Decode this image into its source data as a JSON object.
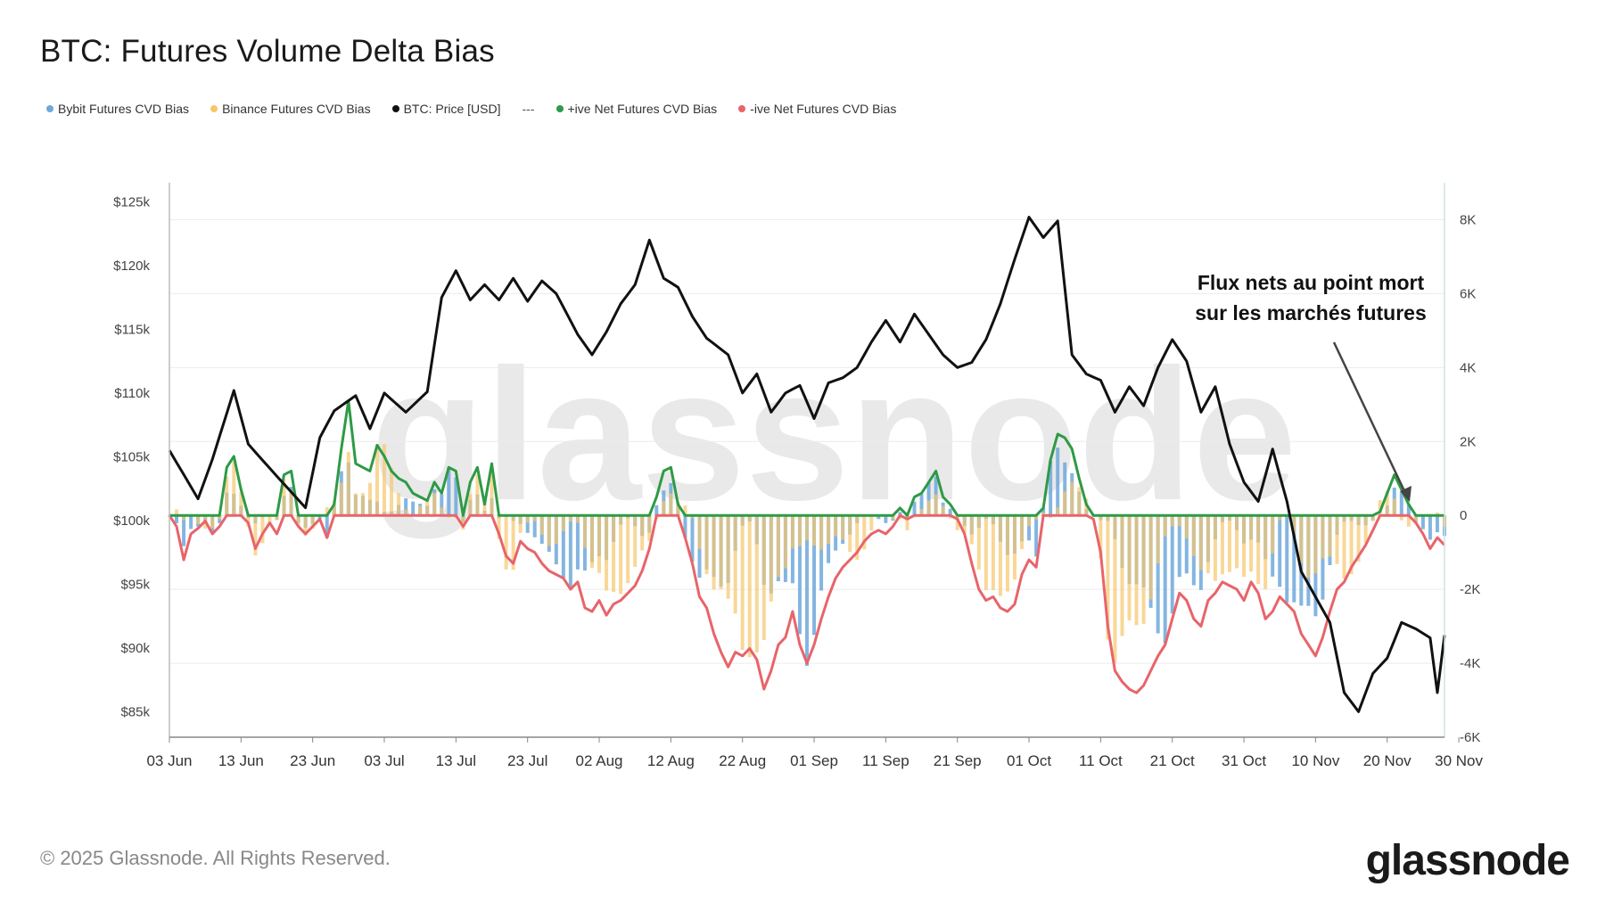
{
  "title": "BTC: Futures Volume Delta Bias",
  "legend": [
    {
      "label": "Bybit Futures CVD Bias",
      "color": "#6fa8dc"
    },
    {
      "label": "Binance Futures CVD Bias",
      "color": "#f6c66b"
    },
    {
      "label": "BTC: Price [USD]",
      "color": "#111111"
    },
    {
      "label": "+ive Net Futures CVD Bias",
      "color": "#2e9a46"
    },
    {
      "label": "-ive Net Futures CVD Bias",
      "color": "#e8646a"
    }
  ],
  "legend_dash": "---",
  "footer": "© 2025 Glassnode. All Rights Reserved.",
  "brand": "glassnode",
  "watermark": "glassnode",
  "annotation": {
    "line1": "Flux nets au point mort",
    "line2": "sur les marchés futures"
  },
  "chart_data": {
    "type": "bar+line",
    "title": "BTC: Futures Volume Delta Bias",
    "x_ticks": [
      "03 Jun",
      "13 Jun",
      "23 Jun",
      "03 Jul",
      "13 Jul",
      "23 Jul",
      "02 Aug",
      "12 Aug",
      "22 Aug",
      "01 Sep",
      "11 Sep",
      "21 Sep",
      "01 Oct",
      "11 Oct",
      "21 Oct",
      "31 Oct",
      "10 Nov",
      "20 Nov",
      "30 Nov"
    ],
    "y_left_ticks": [
      "$125k",
      "$120k",
      "$115k",
      "$110k",
      "$105k",
      "$100k",
      "$95k",
      "$90k",
      "$85k"
    ],
    "y_left_range": [
      83000,
      126500
    ],
    "y_right_ticks": [
      "8K",
      "6K",
      "4K",
      "2K",
      "0",
      "-2K",
      "-4K",
      "-6K"
    ],
    "y_right_range": [
      -6000,
      9000
    ],
    "price_series": {
      "name": "BTC: Price [USD]",
      "anchors": [
        [
          0,
          105500
        ],
        [
          4,
          101700
        ],
        [
          6,
          104800
        ],
        [
          9,
          110200
        ],
        [
          11,
          106000
        ],
        [
          14,
          104100
        ],
        [
          19,
          101000
        ],
        [
          21,
          106500
        ],
        [
          23,
          108600
        ],
        [
          26,
          109800
        ],
        [
          28,
          107200
        ],
        [
          30,
          110000
        ],
        [
          33,
          108500
        ],
        [
          36,
          110100
        ],
        [
          38,
          117500
        ],
        [
          40,
          119600
        ],
        [
          42,
          117300
        ],
        [
          44,
          118500
        ],
        [
          46,
          117300
        ],
        [
          48,
          119000
        ],
        [
          50,
          117200
        ],
        [
          52,
          118800
        ],
        [
          54,
          117800
        ],
        [
          57,
          114600
        ],
        [
          59,
          113000
        ],
        [
          61,
          114800
        ],
        [
          63,
          117000
        ],
        [
          65,
          118500
        ],
        [
          67,
          122000
        ],
        [
          69,
          119000
        ],
        [
          71,
          118300
        ],
        [
          73,
          116000
        ],
        [
          75,
          114300
        ],
        [
          78,
          113000
        ],
        [
          80,
          110000
        ],
        [
          82,
          111500
        ],
        [
          84,
          108500
        ],
        [
          86,
          110000
        ],
        [
          88,
          110600
        ],
        [
          90,
          108000
        ],
        [
          92,
          110800
        ],
        [
          94,
          111200
        ],
        [
          96,
          112000
        ],
        [
          98,
          114000
        ],
        [
          100,
          115700
        ],
        [
          102,
          114000
        ],
        [
          104,
          116200
        ],
        [
          106,
          114600
        ],
        [
          108,
          113000
        ],
        [
          110,
          112000
        ],
        [
          112,
          112400
        ],
        [
          114,
          114200
        ],
        [
          116,
          117000
        ],
        [
          118,
          120500
        ],
        [
          120,
          123800
        ],
        [
          122,
          122200
        ],
        [
          124,
          123500
        ],
        [
          126,
          113000
        ],
        [
          128,
          111500
        ],
        [
          130,
          111000
        ],
        [
          132,
          108500
        ],
        [
          134,
          110500
        ],
        [
          136,
          109000
        ],
        [
          138,
          112000
        ],
        [
          140,
          114200
        ],
        [
          142,
          112500
        ],
        [
          144,
          108500
        ],
        [
          146,
          110500
        ],
        [
          148,
          106000
        ],
        [
          150,
          103000
        ],
        [
          152,
          101500
        ],
        [
          154,
          105600
        ],
        [
          156,
          101500
        ],
        [
          158,
          96000
        ],
        [
          160,
          94000
        ],
        [
          162,
          92000
        ],
        [
          164,
          86500
        ],
        [
          166,
          85000
        ],
        [
          168,
          88000
        ],
        [
          170,
          89200
        ],
        [
          172,
          92000
        ],
        [
          174,
          91500
        ],
        [
          176,
          90800
        ],
        [
          177,
          86500
        ],
        [
          178,
          91000
        ]
      ]
    },
    "net_cvd_series": {
      "name": "Net Futures CVD Bias",
      "anchors": [
        [
          0,
          0
        ],
        [
          1,
          -300
        ],
        [
          2,
          -1200
        ],
        [
          3,
          -500
        ],
        [
          4,
          -350
        ],
        [
          5,
          -150
        ],
        [
          6,
          -500
        ],
        [
          7,
          -300
        ],
        [
          8,
          1300
        ],
        [
          9,
          1600
        ],
        [
          10,
          700
        ],
        [
          11,
          -200
        ],
        [
          12,
          -900
        ],
        [
          13,
          -500
        ],
        [
          14,
          -200
        ],
        [
          15,
          -500
        ],
        [
          16,
          1100
        ],
        [
          17,
          1200
        ],
        [
          18,
          -300
        ],
        [
          19,
          -500
        ],
        [
          20,
          -300
        ],
        [
          21,
          -100
        ],
        [
          22,
          -600
        ],
        [
          23,
          300
        ],
        [
          24,
          1800
        ],
        [
          25,
          3100
        ],
        [
          26,
          1400
        ],
        [
          27,
          1300
        ],
        [
          28,
          1200
        ],
        [
          29,
          1900
        ],
        [
          30,
          1600
        ],
        [
          31,
          1200
        ],
        [
          32,
          1000
        ],
        [
          33,
          900
        ],
        [
          34,
          600
        ],
        [
          35,
          500
        ],
        [
          36,
          400
        ],
        [
          37,
          900
        ],
        [
          38,
          600
        ],
        [
          39,
          1300
        ],
        [
          40,
          1200
        ],
        [
          41,
          -300
        ],
        [
          42,
          900
        ],
        [
          43,
          1300
        ],
        [
          44,
          300
        ],
        [
          45,
          1400
        ],
        [
          46,
          -500
        ],
        [
          47,
          -1100
        ],
        [
          48,
          -1300
        ],
        [
          49,
          -700
        ],
        [
          50,
          -900
        ],
        [
          51,
          -1000
        ],
        [
          52,
          -1300
        ],
        [
          53,
          -1500
        ],
        [
          54,
          -1600
        ],
        [
          55,
          -1700
        ],
        [
          56,
          -2000
        ],
        [
          57,
          -1800
        ],
        [
          58,
          -2500
        ],
        [
          59,
          -2600
        ],
        [
          60,
          -2300
        ],
        [
          61,
          -2700
        ],
        [
          62,
          -2400
        ],
        [
          63,
          -2300
        ],
        [
          64,
          -2100
        ],
        [
          65,
          -1900
        ],
        [
          66,
          -1500
        ],
        [
          67,
          -900
        ],
        [
          68,
          500
        ],
        [
          69,
          1200
        ],
        [
          70,
          1300
        ],
        [
          71,
          300
        ],
        [
          72,
          -600
        ],
        [
          73,
          -1300
        ],
        [
          74,
          -2200
        ],
        [
          75,
          -2500
        ],
        [
          76,
          -3200
        ],
        [
          77,
          -3700
        ],
        [
          78,
          -4100
        ],
        [
          79,
          -3700
        ],
        [
          80,
          -3800
        ],
        [
          81,
          -3600
        ],
        [
          82,
          -3900
        ],
        [
          83,
          -4700
        ],
        [
          84,
          -4200
        ],
        [
          85,
          -3500
        ],
        [
          86,
          -3300
        ],
        [
          87,
          -2600
        ],
        [
          88,
          -3500
        ],
        [
          89,
          -4000
        ],
        [
          90,
          -3500
        ],
        [
          91,
          -2800
        ],
        [
          92,
          -2200
        ],
        [
          93,
          -1700
        ],
        [
          94,
          -1400
        ],
        [
          95,
          -1200
        ],
        [
          96,
          -1000
        ],
        [
          97,
          -700
        ],
        [
          98,
          -500
        ],
        [
          99,
          -400
        ],
        [
          100,
          -500
        ],
        [
          101,
          -300
        ],
        [
          102,
          200
        ],
        [
          103,
          -100
        ],
        [
          104,
          500
        ],
        [
          105,
          600
        ],
        [
          106,
          900
        ],
        [
          107,
          1200
        ],
        [
          108,
          500
        ],
        [
          109,
          300
        ],
        [
          110,
          -100
        ],
        [
          111,
          -500
        ],
        [
          112,
          -1300
        ],
        [
          113,
          -2000
        ],
        [
          114,
          -2300
        ],
        [
          115,
          -2200
        ],
        [
          116,
          -2500
        ],
        [
          117,
          -2600
        ],
        [
          118,
          -2400
        ],
        [
          119,
          -1600
        ],
        [
          120,
          -1200
        ],
        [
          121,
          -1400
        ],
        [
          122,
          200
        ],
        [
          123,
          1500
        ],
        [
          124,
          2200
        ],
        [
          125,
          2100
        ],
        [
          126,
          1800
        ],
        [
          127,
          1000
        ],
        [
          128,
          300
        ],
        [
          129,
          -100
        ],
        [
          130,
          -1000
        ],
        [
          131,
          -3000
        ],
        [
          132,
          -4200
        ],
        [
          133,
          -4500
        ],
        [
          134,
          -4700
        ],
        [
          135,
          -4800
        ],
        [
          136,
          -4600
        ],
        [
          137,
          -4200
        ],
        [
          138,
          -3800
        ],
        [
          139,
          -3500
        ],
        [
          140,
          -2800
        ],
        [
          141,
          -2100
        ],
        [
          142,
          -2300
        ],
        [
          143,
          -2800
        ],
        [
          144,
          -3000
        ],
        [
          145,
          -2300
        ],
        [
          146,
          -2100
        ],
        [
          147,
          -1800
        ],
        [
          148,
          -1900
        ],
        [
          149,
          -2000
        ],
        [
          150,
          -2300
        ],
        [
          151,
          -1800
        ],
        [
          152,
          -2100
        ],
        [
          153,
          -2800
        ],
        [
          154,
          -2600
        ],
        [
          155,
          -2200
        ],
        [
          156,
          -2400
        ],
        [
          157,
          -2600
        ],
        [
          158,
          -3200
        ],
        [
          159,
          -3500
        ],
        [
          160,
          -3800
        ],
        [
          161,
          -3300
        ],
        [
          162,
          -2600
        ],
        [
          163,
          -2000
        ],
        [
          164,
          -1800
        ],
        [
          165,
          -1400
        ],
        [
          166,
          -1100
        ],
        [
          167,
          -800
        ],
        [
          168,
          -400
        ],
        [
          169,
          100
        ],
        [
          170,
          600
        ],
        [
          171,
          1100
        ],
        [
          172,
          700
        ],
        [
          173,
          300
        ],
        [
          174,
          -200
        ],
        [
          175,
          -500
        ],
        [
          176,
          -900
        ],
        [
          177,
          -600
        ],
        [
          178,
          -800
        ]
      ]
    }
  }
}
